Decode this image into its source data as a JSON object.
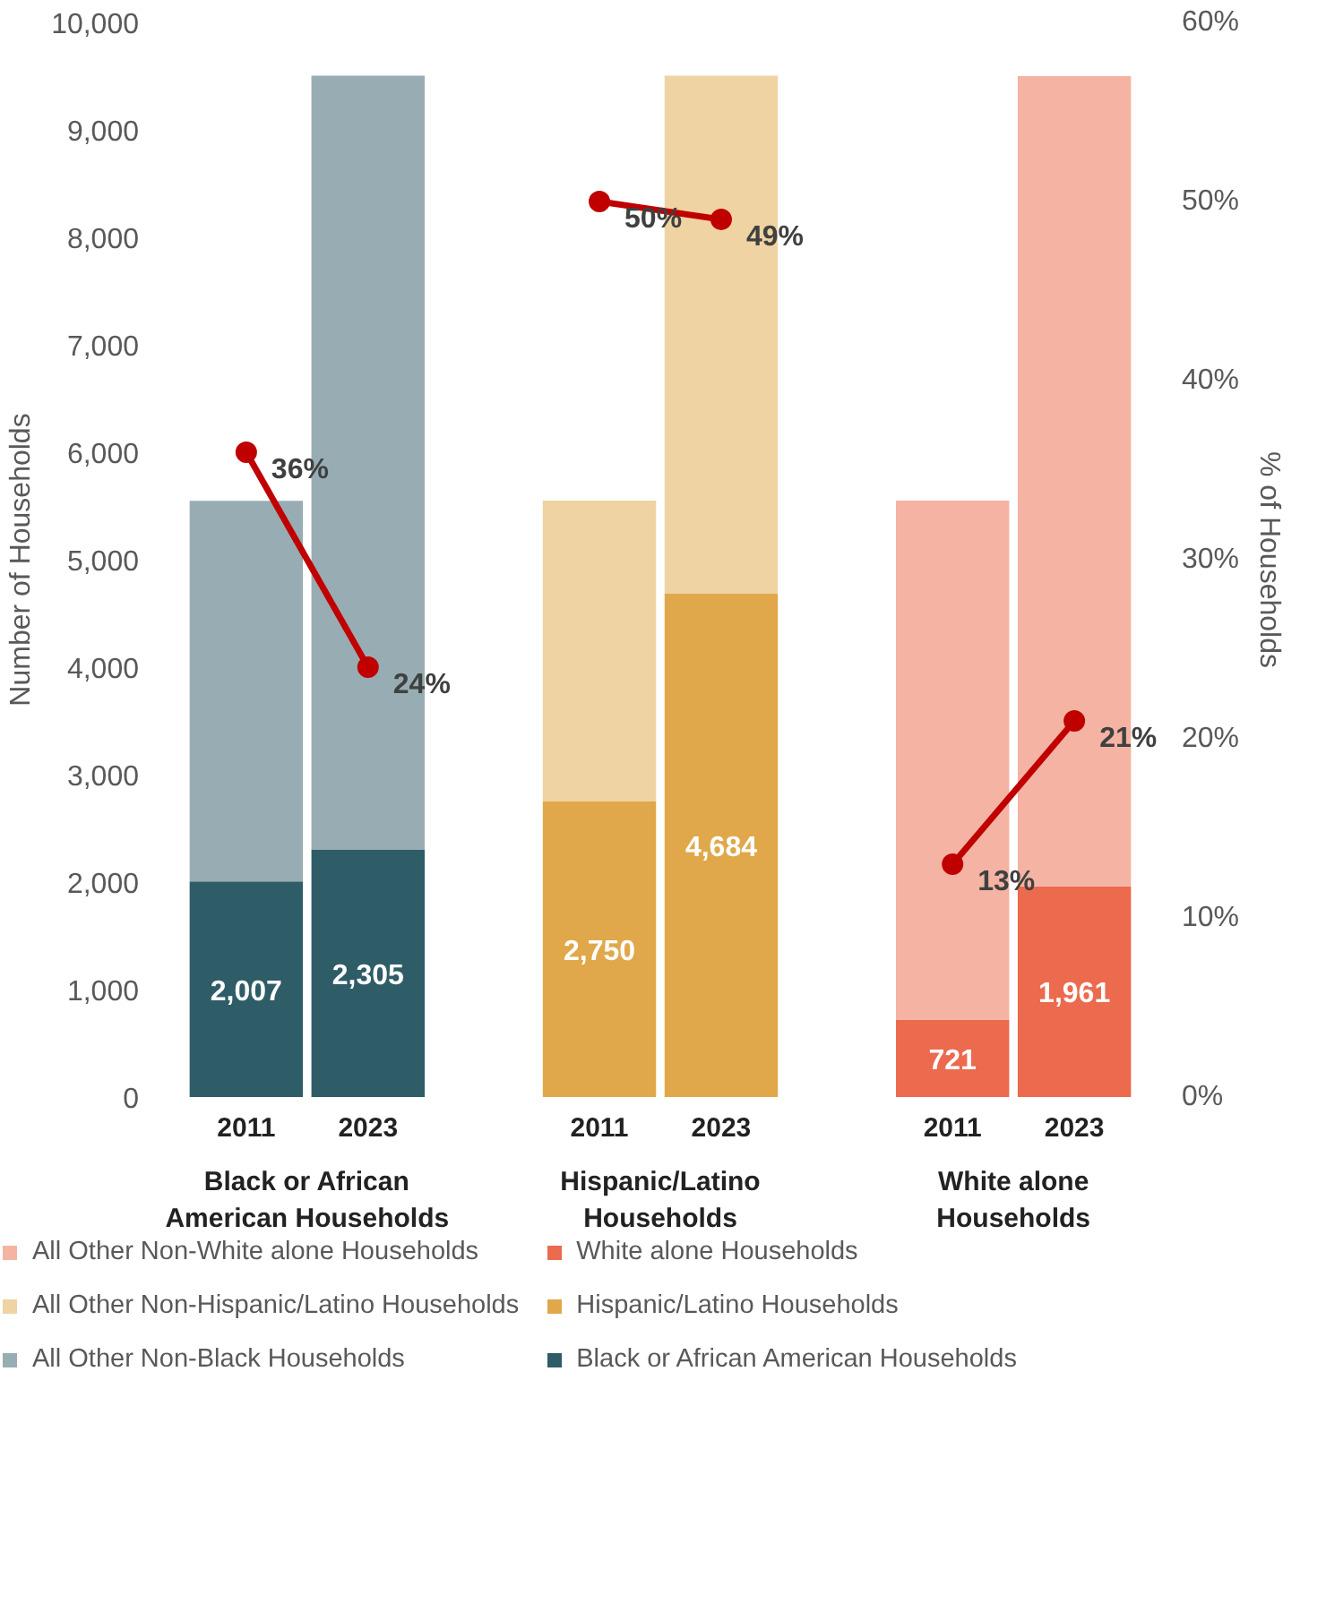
{
  "chart_data": {
    "type": "bar",
    "stacked": true,
    "categories": [
      "2011",
      "2023",
      "2011",
      "2023",
      "2011",
      "2023"
    ],
    "ylabel": "Number of Households",
    "y2label": "% of Households",
    "ylim": [
      0,
      10000
    ],
    "yticks": [
      0,
      {
        "value": 1000,
        "label": "1,000"
      },
      {
        "value": 2000,
        "label": "2,000"
      },
      {
        "value": 3000,
        "label": "3,000"
      },
      {
        "value": 4000,
        "label": "4,000"
      },
      {
        "value": 5000,
        "label": "5,000"
      },
      {
        "value": 6000,
        "label": "6,000"
      },
      {
        "value": 7000,
        "label": "7,000"
      },
      {
        "value": 8000,
        "label": "8,000"
      },
      {
        "value": 9000,
        "label": "9,000"
      },
      {
        "value": 10000,
        "label": "10,000"
      }
    ],
    "y2lim": [
      0,
      60
    ],
    "y2ticks": [
      {
        "value": 0,
        "label": "0%"
      },
      {
        "value": 10,
        "label": "10%"
      },
      {
        "value": 20,
        "label": "20%"
      },
      {
        "value": 30,
        "label": "30%"
      },
      {
        "value": 40,
        "label": "40%"
      },
      {
        "value": 50,
        "label": "50%"
      },
      {
        "value": 60,
        "label": "60%"
      }
    ],
    "annotations": [
      "Black or African American Households",
      "Hispanic/Latino Households",
      "White alone Households"
    ],
    "series": [
      {
        "name": "Black or African American Households",
        "color": "#2e5c67",
        "values": [
          2007,
          2305,
          null,
          null,
          null,
          null
        ],
        "value_labels": [
          "2,007",
          "2,305",
          null,
          null,
          null,
          null
        ]
      },
      {
        "name": "All Other Non-Black Households",
        "color": "#97adb3",
        "values": [
          3540,
          7200,
          null,
          null,
          null,
          null
        ]
      },
      {
        "name": "Hispanic/Latino Households",
        "color": "#e0a84a",
        "values": [
          null,
          null,
          2750,
          4684,
          null,
          null
        ],
        "value_labels": [
          null,
          null,
          "2,750",
          "4,684",
          null,
          null
        ]
      },
      {
        "name": "All Other Non-Hispanic/Latino Households",
        "color": "#efd3a3",
        "values": [
          null,
          null,
          2800,
          4820,
          null,
          null
        ]
      },
      {
        "name": "White alone Households",
        "color": "#ec6a4e",
        "values": [
          null,
          null,
          null,
          null,
          721,
          1961
        ],
        "value_labels": [
          null,
          null,
          null,
          null,
          "721",
          "1,961"
        ]
      },
      {
        "name": "All Other Non-White alone Households",
        "color": "#f4b3a3",
        "values": [
          null,
          null,
          null,
          null,
          4830,
          7540
        ]
      },
      {
        "type": "line",
        "axis": "y2",
        "color": "#c00000",
        "values": [
          36,
          24,
          null,
          null,
          null,
          null
        ],
        "value_labels": [
          "36%",
          "24%",
          null,
          null,
          null,
          null
        ]
      },
      {
        "type": "line",
        "axis": "y2",
        "color": "#c00000",
        "values": [
          null,
          null,
          50,
          49,
          null,
          null
        ],
        "value_labels": [
          null,
          null,
          "50%",
          "49%",
          null,
          null
        ]
      },
      {
        "type": "line",
        "axis": "y2",
        "color": "#c00000",
        "values": [
          null,
          null,
          null,
          null,
          13,
          21
        ],
        "value_labels": [
          null,
          null,
          null,
          null,
          "13%",
          "21%"
        ]
      }
    ],
    "marker": "circle",
    "grid": false,
    "legend": "bottom"
  }
}
